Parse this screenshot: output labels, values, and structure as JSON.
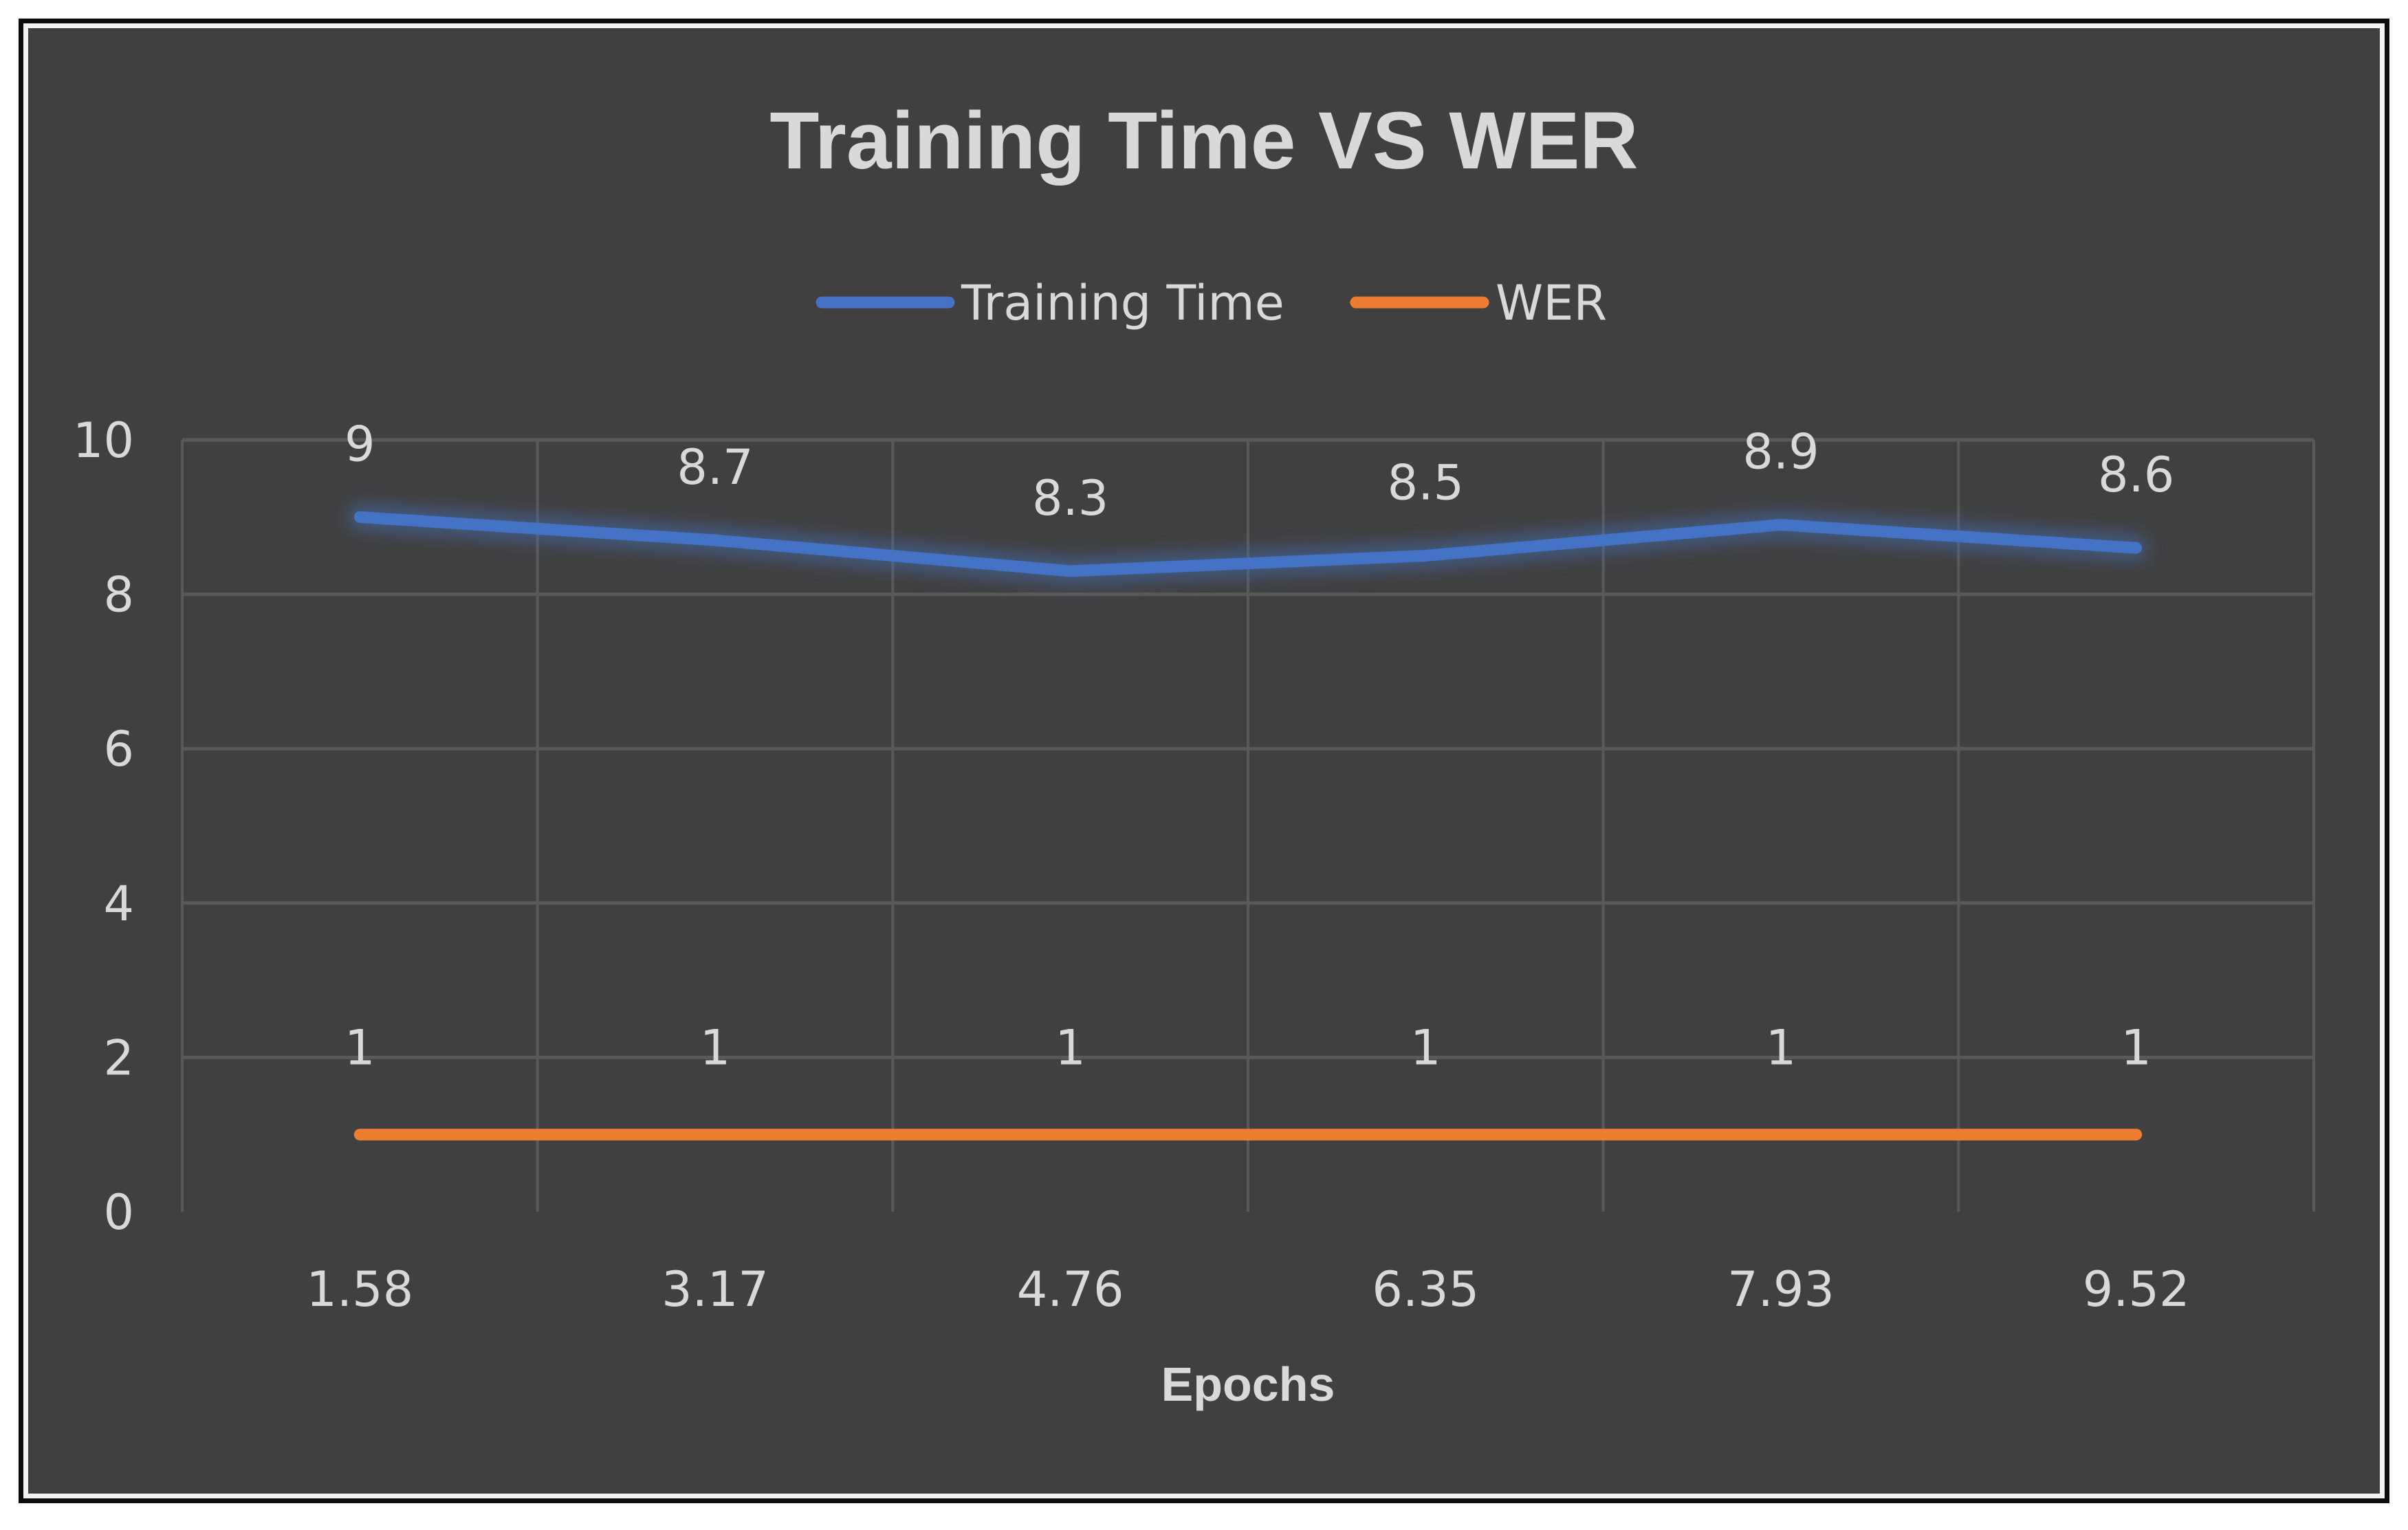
{
  "chart_data": {
    "type": "line",
    "title": "Training Time VS WER",
    "xlabel": "Epochs",
    "ylabel": "",
    "categories": [
      "1.58",
      "3.17",
      "4.76",
      "6.35",
      "7.93",
      "9.52"
    ],
    "ylim": [
      0,
      10
    ],
    "yticks": [
      "0",
      "2",
      "4",
      "6",
      "8",
      "10"
    ],
    "grid": true,
    "legend_position": "top",
    "series": [
      {
        "name": "Training Time",
        "values": [
          9,
          8.7,
          8.3,
          8.5,
          8.9,
          8.6
        ],
        "labels": [
          "9",
          "8.7",
          "8.3",
          "8.5",
          "8.9",
          "8.6"
        ],
        "color": "#4472c4"
      },
      {
        "name": "WER",
        "values": [
          1,
          1,
          1,
          1,
          1,
          1
        ],
        "labels": [
          "1",
          "1",
          "1",
          "1",
          "1",
          "1"
        ],
        "color": "#ed7d31"
      }
    ],
    "colors": {
      "background": "#404040",
      "gridline": "#595959",
      "text": "#d9d9d9"
    }
  }
}
